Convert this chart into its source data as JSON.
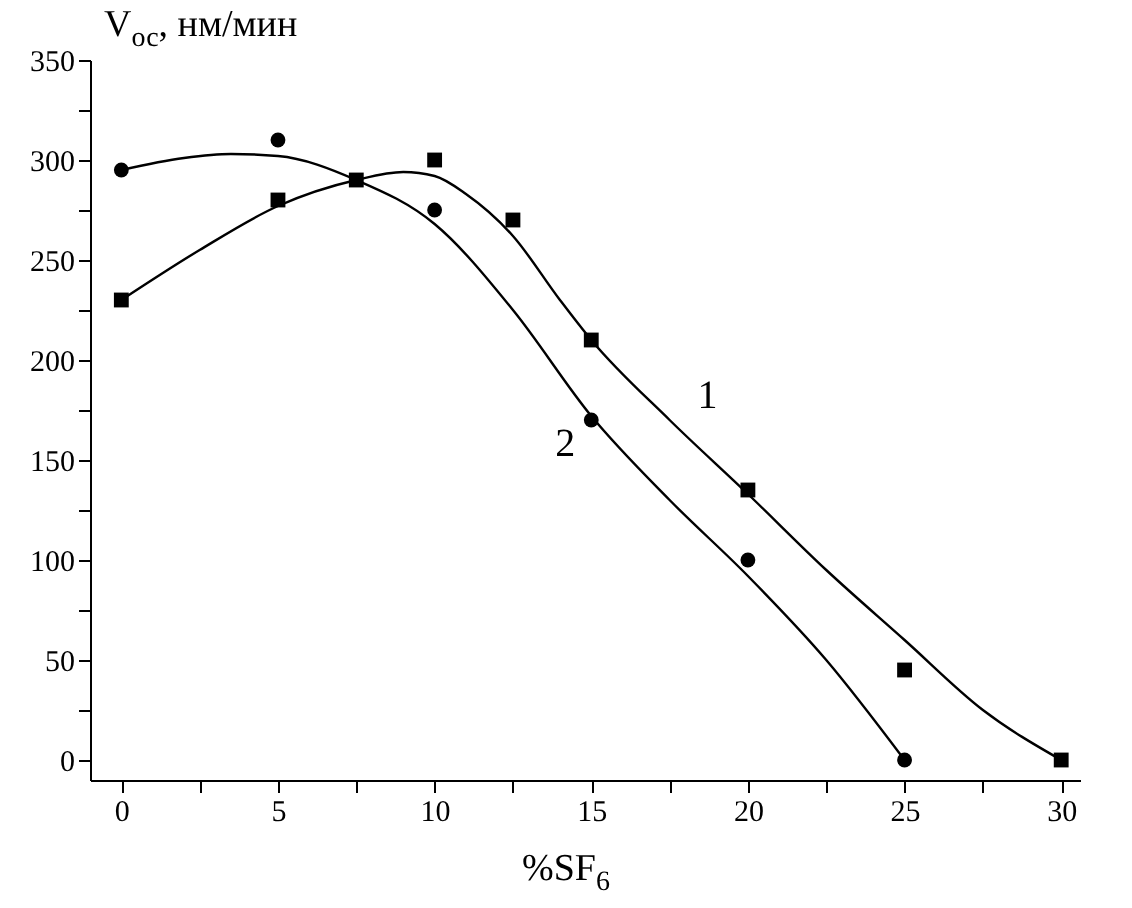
{
  "chart_data": {
    "type": "scatter",
    "xlabel": "%SF$_{6}$",
    "ylabel": "V$_{ос}$, нм/мин",
    "xlim": [
      -1,
      30.6
    ],
    "ylim": [
      -10,
      350
    ],
    "xticks": [
      0,
      {
        "value": 2.5,
        "label": null
      },
      5,
      {
        "value": 7.5,
        "label": null
      },
      10,
      {
        "value": 12.5,
        "label": null
      },
      15,
      {
        "value": 17.5,
        "label": null
      },
      20,
      {
        "value": 22.5,
        "label": null
      },
      25,
      {
        "value": 27.5,
        "label": null
      },
      30
    ],
    "yticks": [
      0,
      {
        "value": 25,
        "label": null
      },
      50,
      {
        "value": 75,
        "label": null
      },
      100,
      {
        "value": 125,
        "label": null
      },
      150,
      {
        "value": 175,
        "label": null
      },
      200,
      {
        "value": 225,
        "label": null
      },
      250,
      {
        "value": 275,
        "label": null
      },
      300,
      {
        "value": 325,
        "label": null
      },
      350
    ],
    "grid": false,
    "series": [
      {
        "marker": "square",
        "color": "#000000",
        "x": [
          0,
          5,
          7.5,
          10,
          12.5,
          15,
          20,
          25,
          30
        ],
        "values": [
          230,
          280,
          290,
          300,
          270,
          210,
          135,
          45,
          0
        ]
      },
      {
        "marker": "circle",
        "color": "#000000",
        "x": [
          0,
          5,
          10,
          15,
          20,
          25
        ],
        "values": [
          295,
          310,
          275,
          170,
          100,
          0
        ]
      },
      {
        "type": "line",
        "name": "1",
        "marker": "none",
        "color": "#000000",
        "x": [
          0,
          2.5,
          5,
          7.5,
          9,
          10,
          11,
          12.5,
          14,
          15,
          17.5,
          20,
          22.5,
          25,
          27.5,
          30
        ],
        "values": [
          230,
          255,
          277,
          290,
          294,
          292,
          283,
          262,
          230,
          210,
          170,
          133,
          95,
          60,
          25,
          0
        ]
      },
      {
        "type": "line",
        "name": "2",
        "marker": "none",
        "color": "#000000",
        "x": [
          0,
          2,
          3.5,
          5,
          7.5,
          10,
          12.5,
          15,
          17.5,
          20,
          22.5,
          25
        ],
        "values": [
          295,
          301,
          303,
          302,
          290,
          268,
          225,
          172,
          130,
          92,
          50,
          0
        ]
      }
    ]
  }
}
